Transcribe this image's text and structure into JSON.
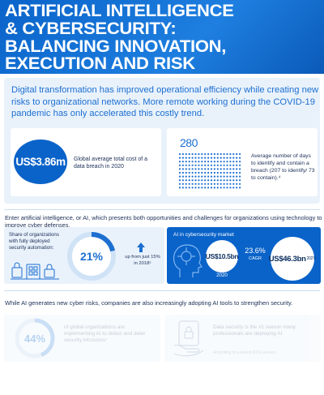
{
  "header": {
    "line1": "ARTIFICIAL INTELLIGENCE",
    "line2": "& CYBERSECURITY:",
    "line3": "BALANCING INNOVATION,",
    "line4": "EXECUTION AND RISK"
  },
  "intro": {
    "text": "Digital transformation has improved operational efficiency while creating new risks to organizational networks. More remote working during the COVID-19 pandemic has only accelerated this costly trend.",
    "cost_value": "US$3.86m",
    "cost_label": "Global average total cost of a data breach in 2020",
    "days_value": "280",
    "days_label": "Average number of days to identify and contain a breach (207 to identify/ 73 to contain).⁴"
  },
  "section2": {
    "text": "Enter artificial intelligence, or AI, which presents both opportunities and challenges for organizations using technology to improve cyber defenses.",
    "share_label": "Share of organizations with fully deployed security automation:",
    "share_value": "21%",
    "share_fraction": 0.21,
    "up_text": "up from just 15% in 2018⁵",
    "market_label": "AI in cybersecurity market",
    "market_2020_value": "US$10.5bn",
    "market_2020_year": "2020",
    "cagr_value": "23.6%",
    "cagr_label": "CAGR",
    "market_future_value": "US$46.3bn",
    "market_future_year": "2027⁶"
  },
  "section3": {
    "text": "While AI generates new cyber risks, companies are also increasingly adopting AI tools to strengthen security.",
    "adopt_value": "44%",
    "adopt_fraction": 0.44,
    "adopt_label": "of global organizations are implementing AI to detect and deter security intrusions⁷",
    "skills_label": "Data security is the #1 reason many professionals are deploying AI",
    "skills_note": "According to a recent 2021 survey⁸"
  },
  "colors": {
    "brand_blue": "#0a63c9",
    "accent_blue": "#1d6fd0",
    "navy": "#1b2f57",
    "pale_blue": "#e9f2fb"
  }
}
